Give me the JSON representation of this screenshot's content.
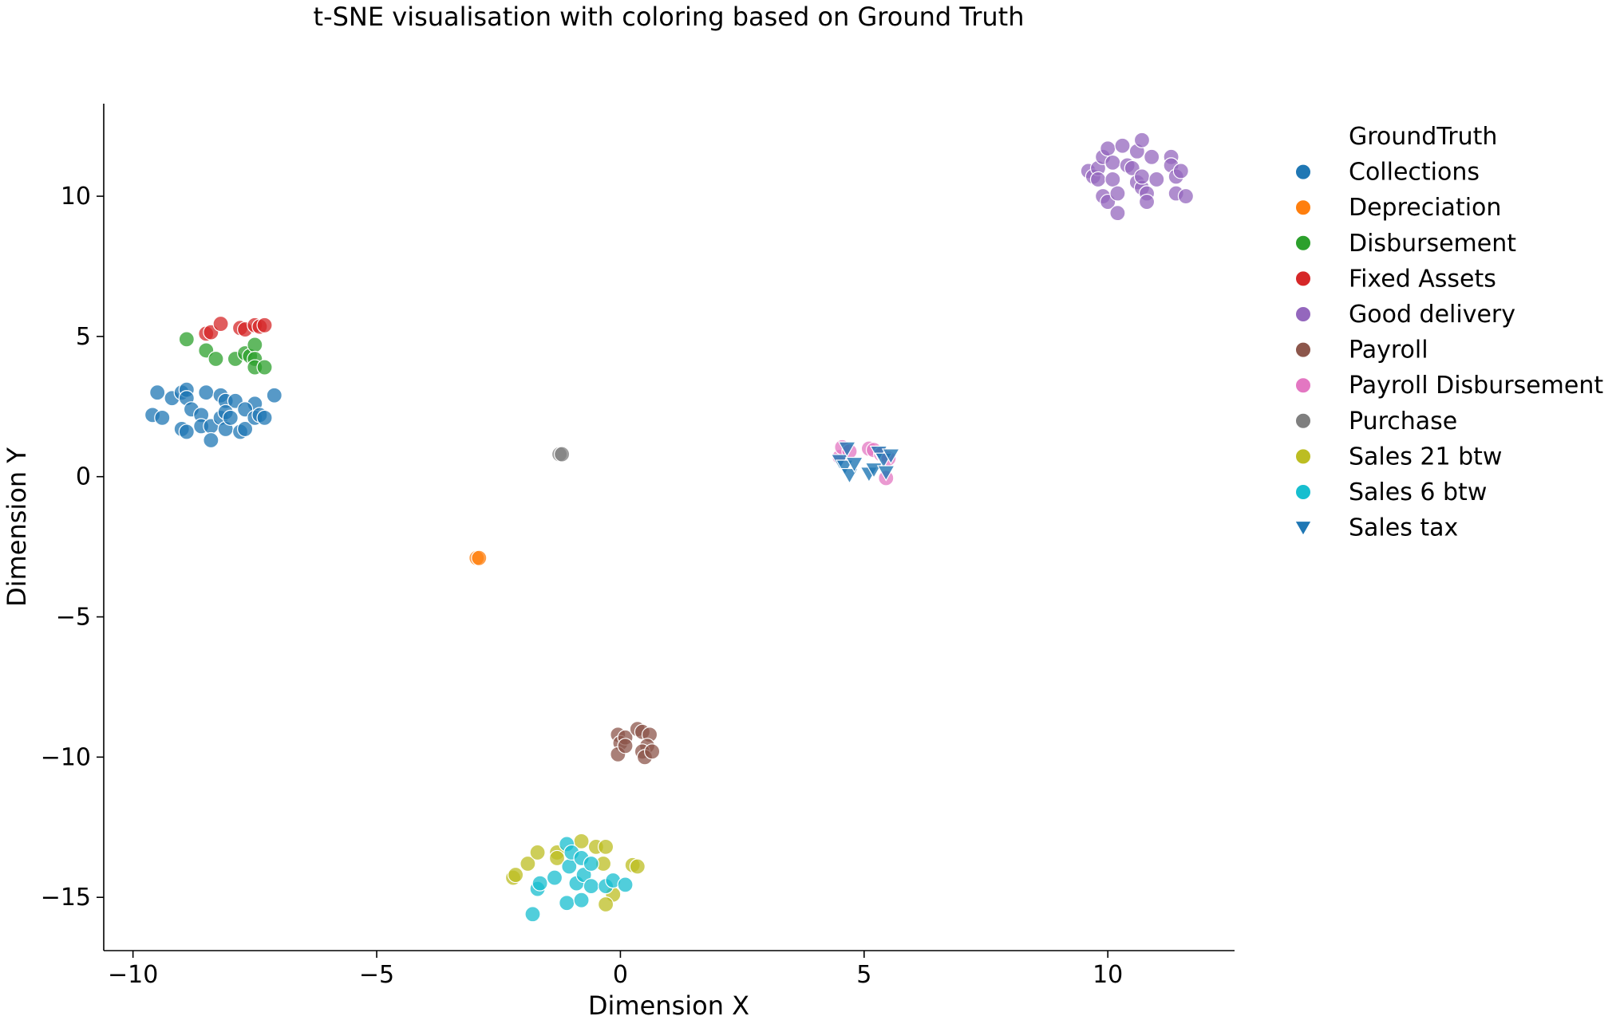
{
  "chart_data": {
    "type": "scatter",
    "title": "t-SNE visualisation with coloring based on Ground Truth",
    "xlabel": "Dimension X",
    "ylabel": "Dimension Y",
    "xlim": [
      -10.6,
      12.6
    ],
    "ylim": [
      -16.9,
      13.3
    ],
    "xticks": [
      -10,
      -5,
      0,
      5,
      10
    ],
    "yticks": [
      -15,
      -10,
      -5,
      0,
      5,
      10
    ],
    "xtick_labels": [
      "−10",
      "−5",
      "0",
      "5",
      "10"
    ],
    "ytick_labels": [
      "−15",
      "−10",
      "−5",
      "0",
      "5",
      "10"
    ],
    "grid": false,
    "legend": {
      "title": "GroundTruth",
      "placement": "right"
    },
    "series": [
      {
        "name": "Collections",
        "color": "#1f77b4",
        "marker": "circle",
        "points": [
          [
            -9.5,
            3.0
          ],
          [
            -9.2,
            2.8
          ],
          [
            -9.0,
            3.0
          ],
          [
            -8.9,
            3.1
          ],
          [
            -8.9,
            2.8
          ],
          [
            -8.5,
            3.0
          ],
          [
            -8.2,
            2.9
          ],
          [
            -8.1,
            2.7
          ],
          [
            -7.9,
            2.7
          ],
          [
            -7.5,
            2.6
          ],
          [
            -7.1,
            2.9
          ],
          [
            -9.6,
            2.2
          ],
          [
            -9.4,
            2.1
          ],
          [
            -9.0,
            1.7
          ],
          [
            -8.9,
            1.6
          ],
          [
            -8.8,
            2.4
          ],
          [
            -8.6,
            2.2
          ],
          [
            -8.6,
            1.8
          ],
          [
            -8.4,
            1.8
          ],
          [
            -8.4,
            1.3
          ],
          [
            -8.2,
            2.1
          ],
          [
            -8.1,
            2.3
          ],
          [
            -8.1,
            1.7
          ],
          [
            -8.0,
            2.1
          ],
          [
            -7.8,
            1.6
          ],
          [
            -7.7,
            1.7
          ],
          [
            -7.7,
            2.4
          ],
          [
            -7.5,
            2.1
          ],
          [
            -7.4,
            2.2
          ],
          [
            -7.3,
            2.1
          ]
        ]
      },
      {
        "name": "Depreciation",
        "color": "#ff7f0e",
        "marker": "circle",
        "points": [
          [
            -2.95,
            -2.9
          ],
          [
            -2.9,
            -2.9
          ]
        ]
      },
      {
        "name": "Disbursement",
        "color": "#2ca02c",
        "marker": "circle",
        "points": [
          [
            -8.9,
            4.9
          ],
          [
            -8.5,
            4.5
          ],
          [
            -8.3,
            4.2
          ],
          [
            -7.9,
            4.2
          ],
          [
            -7.7,
            4.4
          ],
          [
            -7.6,
            4.3
          ],
          [
            -7.5,
            4.7
          ],
          [
            -7.5,
            4.2
          ],
          [
            -7.5,
            3.9
          ],
          [
            -7.3,
            3.9
          ]
        ]
      },
      {
        "name": "Fixed Assets",
        "color": "#d62728",
        "marker": "circle",
        "points": [
          [
            -8.5,
            5.1
          ],
          [
            -8.4,
            5.15
          ],
          [
            -8.2,
            5.45
          ],
          [
            -7.8,
            5.3
          ],
          [
            -7.7,
            5.25
          ],
          [
            -7.5,
            5.4
          ],
          [
            -7.4,
            5.35
          ],
          [
            -7.3,
            5.4
          ]
        ]
      },
      {
        "name": "Good delivery",
        "color": "#9467bd",
        "marker": "circle",
        "points": [
          [
            9.6,
            10.9
          ],
          [
            9.7,
            10.7
          ],
          [
            9.8,
            11.0
          ],
          [
            9.8,
            10.6
          ],
          [
            9.9,
            11.4
          ],
          [
            9.9,
            10.0
          ],
          [
            10.0,
            11.7
          ],
          [
            10.0,
            9.8
          ],
          [
            10.1,
            11.2
          ],
          [
            10.1,
            10.6
          ],
          [
            10.2,
            10.1
          ],
          [
            10.2,
            9.4
          ],
          [
            10.3,
            11.8
          ],
          [
            10.4,
            11.1
          ],
          [
            10.5,
            11.0
          ],
          [
            10.6,
            10.5
          ],
          [
            10.6,
            11.6
          ],
          [
            10.7,
            12.0
          ],
          [
            10.7,
            10.3
          ],
          [
            10.7,
            10.7
          ],
          [
            10.8,
            10.1
          ],
          [
            10.8,
            9.8
          ],
          [
            10.9,
            11.4
          ],
          [
            11.0,
            10.6
          ],
          [
            11.3,
            11.4
          ],
          [
            11.3,
            11.1
          ],
          [
            11.4,
            10.1
          ],
          [
            11.4,
            10.7
          ],
          [
            11.5,
            10.9
          ],
          [
            11.6,
            10.0
          ]
        ]
      },
      {
        "name": "Payroll",
        "color": "#8c564b",
        "marker": "circle",
        "points": [
          [
            -0.05,
            -9.2
          ],
          [
            0.0,
            -9.5
          ],
          [
            0.1,
            -9.3
          ],
          [
            0.35,
            -9.0
          ],
          [
            0.45,
            -9.1
          ],
          [
            0.6,
            -9.2
          ],
          [
            0.55,
            -9.6
          ],
          [
            0.45,
            -9.8
          ],
          [
            0.5,
            -10.0
          ],
          [
            0.65,
            -9.8
          ],
          [
            -0.05,
            -9.9
          ],
          [
            0.1,
            -9.6
          ]
        ]
      },
      {
        "name": "Payroll Disbursement",
        "color": "#e377c2",
        "marker": "circle",
        "points": [
          [
            4.5,
            0.7
          ],
          [
            4.55,
            1.05
          ],
          [
            4.7,
            0.9
          ],
          [
            5.1,
            1.0
          ],
          [
            5.2,
            0.95
          ],
          [
            5.35,
            0.8
          ],
          [
            5.45,
            -0.05
          ],
          [
            5.5,
            0.65
          ]
        ]
      },
      {
        "name": "Purchase",
        "color": "#7f7f7f",
        "marker": "circle",
        "points": [
          [
            -1.25,
            0.8
          ],
          [
            -1.2,
            0.8
          ]
        ]
      },
      {
        "name": "Sales 21 btw",
        "color": "#bcbd22",
        "marker": "circle",
        "points": [
          [
            -2.2,
            -14.3
          ],
          [
            -2.15,
            -14.2
          ],
          [
            -1.9,
            -13.8
          ],
          [
            -1.7,
            -13.4
          ],
          [
            -1.3,
            -13.4
          ],
          [
            -1.3,
            -13.6
          ],
          [
            -0.8,
            -13.0
          ],
          [
            -0.5,
            -13.2
          ],
          [
            -0.3,
            -13.2
          ],
          [
            -0.35,
            -13.8
          ],
          [
            -0.15,
            -14.9
          ],
          [
            -0.3,
            -15.25
          ],
          [
            0.25,
            -13.85
          ],
          [
            0.35,
            -13.9
          ]
        ]
      },
      {
        "name": "Sales 6 btw",
        "color": "#17becf",
        "marker": "circle",
        "points": [
          [
            -1.8,
            -15.6
          ],
          [
            -1.7,
            -14.7
          ],
          [
            -1.65,
            -14.5
          ],
          [
            -1.35,
            -14.3
          ],
          [
            -1.1,
            -13.1
          ],
          [
            -1.05,
            -13.9
          ],
          [
            -1.0,
            -13.4
          ],
          [
            -0.9,
            -14.5
          ],
          [
            -0.8,
            -13.6
          ],
          [
            -0.75,
            -14.2
          ],
          [
            -0.6,
            -13.8
          ],
          [
            -0.6,
            -14.6
          ],
          [
            -0.3,
            -14.6
          ],
          [
            -0.15,
            -14.4
          ],
          [
            0.1,
            -14.55
          ],
          [
            -1.1,
            -15.2
          ],
          [
            -0.8,
            -15.1
          ]
        ]
      },
      {
        "name": "Sales tax",
        "color": "#1f77b4",
        "marker": "triangle-down",
        "points": [
          [
            4.5,
            0.55
          ],
          [
            4.6,
            0.35
          ],
          [
            4.65,
            1.0
          ],
          [
            4.7,
            0.05
          ],
          [
            4.8,
            0.45
          ],
          [
            5.1,
            0.1
          ],
          [
            5.2,
            0.25
          ],
          [
            5.3,
            0.85
          ],
          [
            5.4,
            0.6
          ],
          [
            5.45,
            0.15
          ],
          [
            5.55,
            0.75
          ]
        ]
      }
    ]
  }
}
